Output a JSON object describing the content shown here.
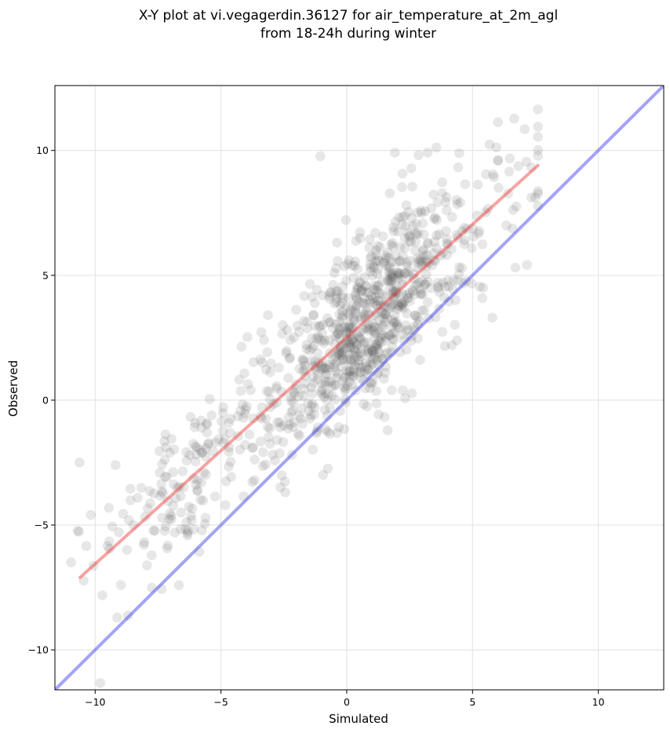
{
  "chart_data": {
    "type": "scatter",
    "title": "X-Y plot at vi.vegagerdin.36127 for air_temperature_at_2m_agl",
    "subtitle": "from 18-24h during winter",
    "xlabel": "Simulated",
    "ylabel": "Observed",
    "xlim": [
      -11.6,
      12.6
    ],
    "ylim": [
      -11.6,
      12.6
    ],
    "xticks": [
      -10,
      -5,
      0,
      5,
      10
    ],
    "yticks": [
      -10,
      -5,
      0,
      5,
      10
    ],
    "tick_labels": [
      "−10",
      "−5",
      "0",
      "5",
      "10"
    ],
    "grid": true,
    "point_color": "#555555",
    "point_opacity": 0.14,
    "identity_line": {
      "color": "#3333ee",
      "from": [
        -11.6,
        -11.6
      ],
      "to": [
        12.6,
        12.6
      ]
    },
    "fit_line": {
      "color": "#ee3333",
      "from": [
        -10.6,
        -7.1
      ],
      "to": [
        7.6,
        9.4
      ]
    },
    "points_description": {
      "count": 1000,
      "note": "dense cloud following fit line; points sampled around Observed = 0.9*Simulated + 2.4 with spread ~1.6"
    },
    "points": []
  }
}
